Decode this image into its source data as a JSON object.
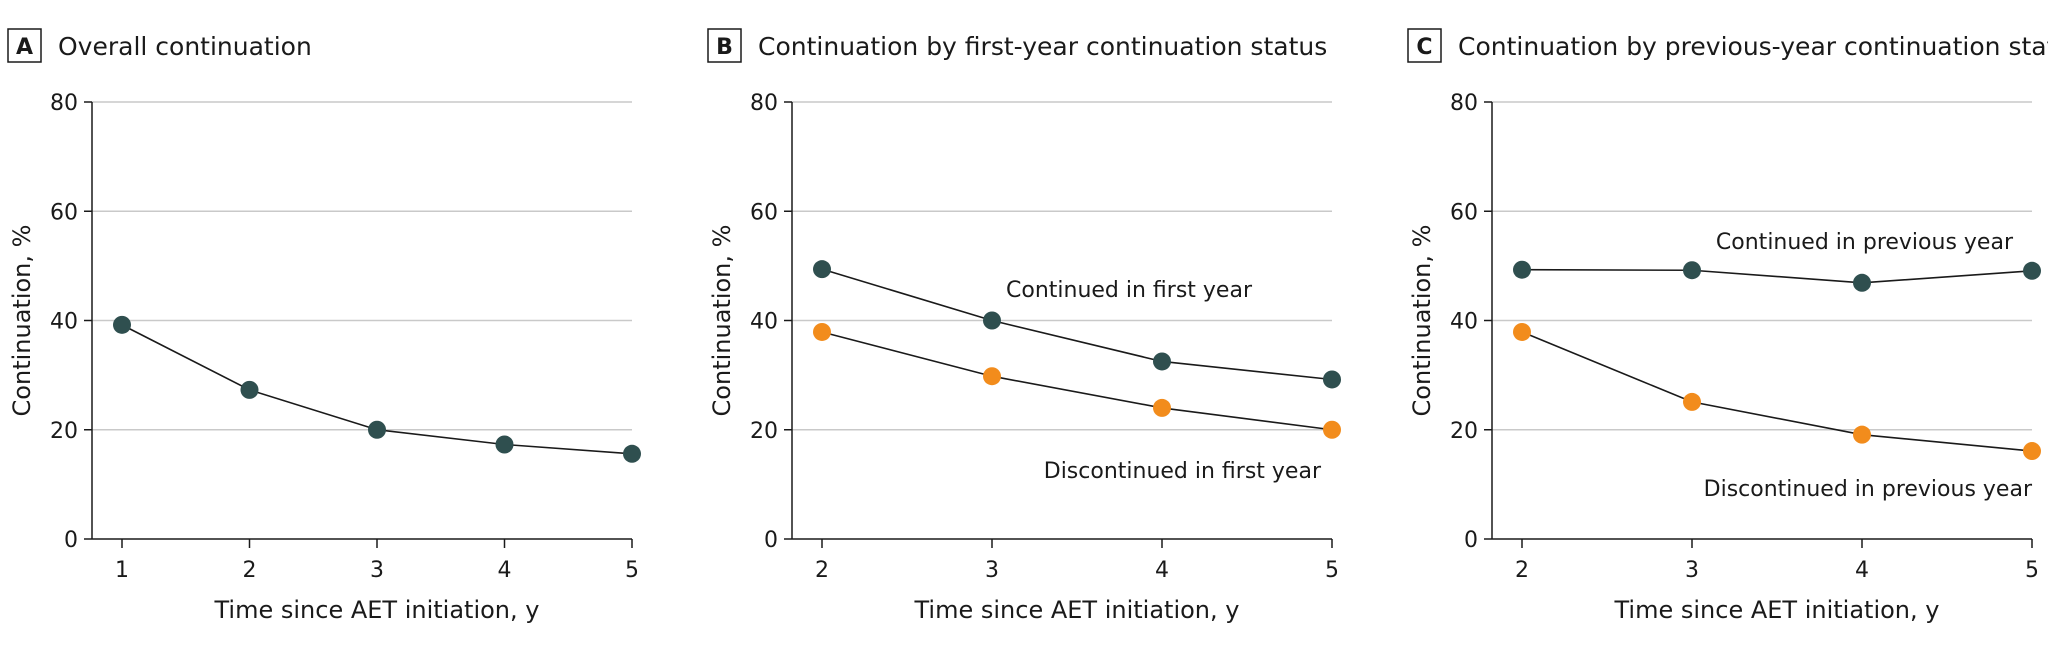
{
  "chart_data": [
    {
      "type": "line",
      "panel": "A",
      "title": "Overall continuation",
      "xlabel": "Time since AET initiation, y",
      "ylabel": "Continuation, %",
      "x": [
        1,
        2,
        3,
        4,
        5
      ],
      "xlim": [
        1,
        5
      ],
      "ylim": [
        0,
        80
      ],
      "yticks": [
        0,
        20,
        40,
        60,
        80
      ],
      "grid": true,
      "series": [
        {
          "name": "Overall",
          "label": "",
          "color": "#2f4f4f",
          "values": [
            39.2,
            27.3,
            20.0,
            17.3,
            15.6
          ]
        }
      ]
    },
    {
      "type": "line",
      "panel": "B",
      "title": "Continuation by first-year continuation status",
      "xlabel": "Time since AET initiation, y",
      "ylabel": "Continuation, %",
      "x": [
        2,
        3,
        4,
        5
      ],
      "xlim": [
        2,
        5
      ],
      "ylim": [
        0,
        80
      ],
      "yticks": [
        0,
        20,
        40,
        60,
        80
      ],
      "grid": true,
      "series": [
        {
          "name": "Continued in first year",
          "label": "Continued in first year",
          "color": "#2f4f4f",
          "values": [
            49.4,
            40.0,
            32.5,
            29.2
          ]
        },
        {
          "name": "Discontinued in first year",
          "label": "Discontinued in first year",
          "color": "#f28c1c",
          "values": [
            37.9,
            29.8,
            24.0,
            20.0
          ]
        }
      ]
    },
    {
      "type": "line",
      "panel": "C",
      "title": "Continuation by previous-year continuation status",
      "xlabel": "Time since AET initiation, y",
      "ylabel": "Continuation, %",
      "x": [
        2,
        3,
        4,
        5
      ],
      "xlim": [
        2,
        5
      ],
      "ylim": [
        0,
        80
      ],
      "yticks": [
        0,
        20,
        40,
        60,
        80
      ],
      "grid": true,
      "series": [
        {
          "name": "Continued in previous year",
          "label": "Continued in previous year",
          "color": "#2f4f4f",
          "values": [
            49.3,
            49.2,
            46.9,
            49.1
          ]
        },
        {
          "name": "Discontinued in previous year",
          "label": "Discontinued in previous year",
          "color": "#f28c1c",
          "values": [
            37.9,
            25.1,
            19.1,
            16.1
          ]
        }
      ]
    }
  ]
}
